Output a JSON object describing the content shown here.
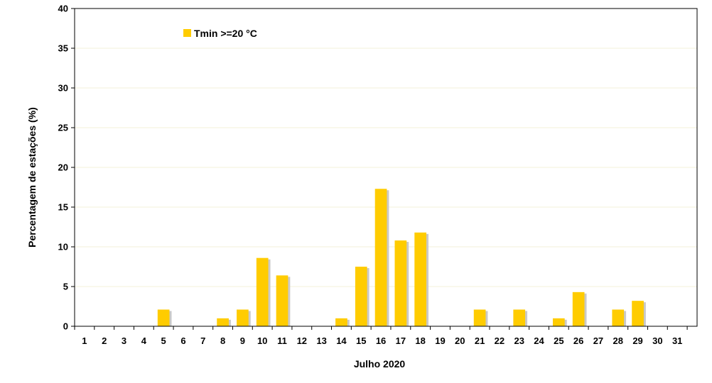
{
  "chart_data": {
    "type": "bar",
    "xlabel": "Julho 2020",
    "ylabel": "Percentagem de estações (%)",
    "ylim": [
      0,
      40
    ],
    "yticks": [
      "0",
      "5",
      "10",
      "15",
      "20",
      "25",
      "30",
      "35",
      "40"
    ],
    "categories": [
      "1",
      "2",
      "3",
      "4",
      "5",
      "6",
      "7",
      "8",
      "9",
      "10",
      "11",
      "12",
      "13",
      "14",
      "15",
      "16",
      "17",
      "18",
      "19",
      "20",
      "21",
      "22",
      "23",
      "24",
      "25",
      "26",
      "27",
      "28",
      "29",
      "30",
      "31"
    ],
    "series": [
      {
        "name": "Tmin >=20 °C",
        "color": "#FFCC00",
        "values": [
          0,
          0,
          0,
          0,
          2.1,
          0,
          0,
          1.0,
          2.1,
          8.6,
          6.4,
          0,
          0,
          1.0,
          7.5,
          17.3,
          10.8,
          11.8,
          0,
          0,
          2.1,
          0,
          2.1,
          0,
          1.0,
          4.3,
          0,
          2.1,
          3.2,
          0,
          0
        ]
      }
    ],
    "grid": true,
    "legend": "top-left"
  }
}
